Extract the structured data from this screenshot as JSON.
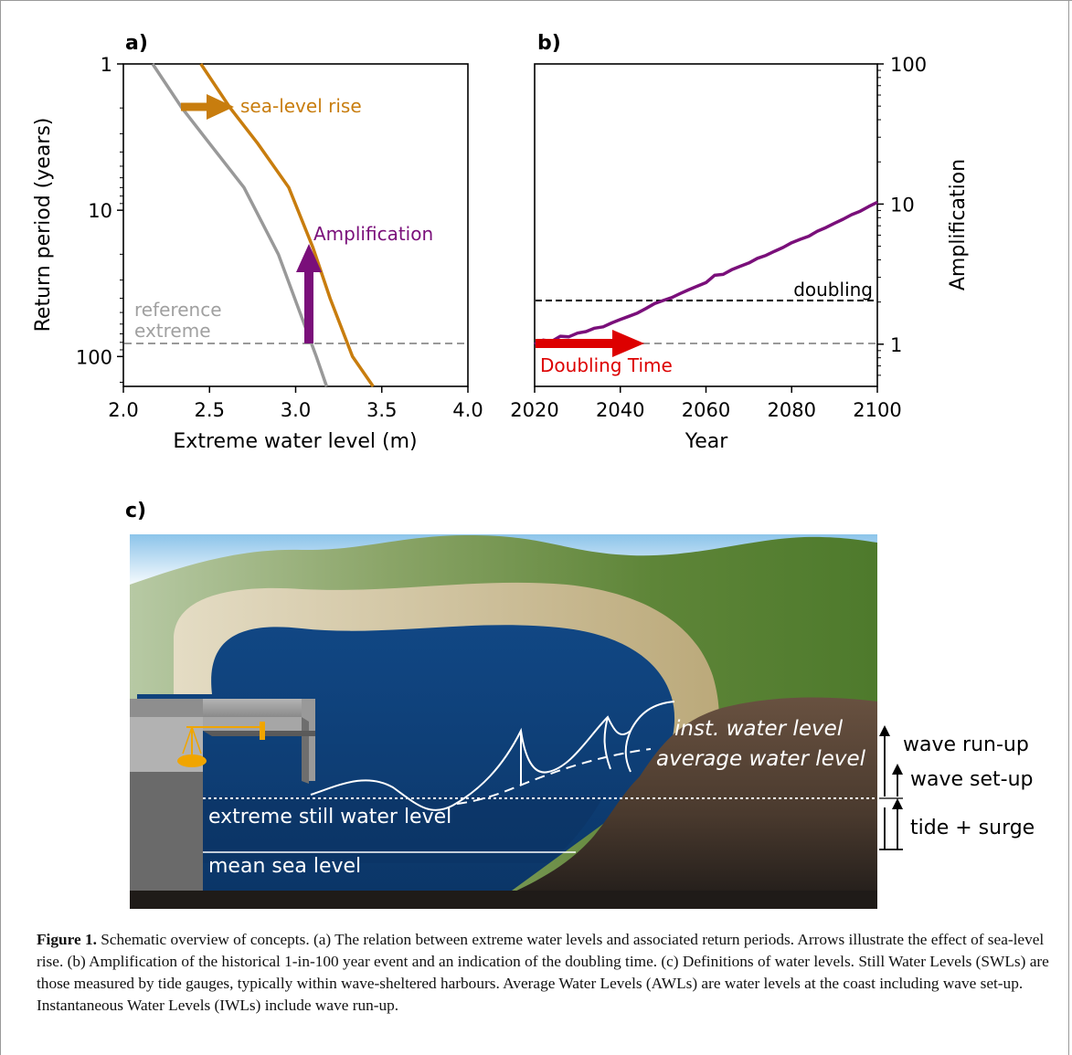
{
  "panels": {
    "a": {
      "label": "a)"
    },
    "b": {
      "label": "b)"
    },
    "c": {
      "label": "c)"
    }
  },
  "chart_data": [
    {
      "id": "panel-a",
      "type": "line",
      "xlabel": "Extreme water level (m)",
      "ylabel": "Return period (years)",
      "xlim": [
        2.0,
        4.0
      ],
      "ylim": [
        1,
        160
      ],
      "yscale": "log",
      "y_inverted": true,
      "xticks": [
        "2.0",
        "2.5",
        "3.0",
        "3.5",
        "4.0"
      ],
      "yticks": [
        "1",
        "10",
        "100"
      ],
      "series": [
        {
          "color": "#999999",
          "points": [
            [
              2.17,
              1
            ],
            [
              2.34,
              2
            ],
            [
              2.5,
              3.5
            ],
            [
              2.7,
              7
            ],
            [
              2.9,
              20
            ],
            [
              3.05,
              60
            ],
            [
              3.12,
              100
            ],
            [
              3.18,
              160
            ]
          ]
        },
        {
          "color": "#c87d0e",
          "points": [
            [
              2.45,
              1
            ],
            [
              2.62,
              2
            ],
            [
              2.78,
              3.5
            ],
            [
              2.96,
              7
            ],
            [
              3.1,
              18
            ],
            [
              3.2,
              40
            ],
            [
              3.33,
              100
            ],
            [
              3.45,
              160
            ]
          ]
        }
      ],
      "reference_line": {
        "y": 100,
        "color": "#999999",
        "style": "dashed"
      },
      "annotations": {
        "slr_label": "sea-level rise",
        "amp_label": "Amplification",
        "ref_label_1": "reference",
        "ref_label_2": "extreme"
      },
      "colors": {
        "slr": "#c87d0e",
        "amp": "#7a0f7a",
        "reference": "#999999"
      }
    },
    {
      "id": "panel-b",
      "type": "line",
      "xlabel": "Year",
      "ylabel": "Amplification",
      "xlim": [
        2020,
        2100
      ],
      "ylim": [
        0.5,
        100
      ],
      "yscale": "log",
      "xticks": [
        "2020",
        "2040",
        "2060",
        "2080",
        "2100"
      ],
      "yticks": [
        "1",
        "10",
        "100"
      ],
      "series": [
        {
          "color": "#7a0f7a",
          "x": [
            2020,
            2022,
            2024,
            2026,
            2028,
            2030,
            2032,
            2034,
            2036,
            2038,
            2040,
            2042,
            2044,
            2046,
            2048,
            2050,
            2052,
            2054,
            2056,
            2058,
            2060,
            2062,
            2064,
            2066,
            2068,
            2070,
            2072,
            2074,
            2076,
            2078,
            2080,
            2082,
            2084,
            2086,
            2088,
            2090,
            2092,
            2094,
            2096,
            2098,
            2100
          ],
          "y": [
            1.0,
            1.07,
            1.05,
            1.14,
            1.13,
            1.2,
            1.23,
            1.3,
            1.33,
            1.42,
            1.5,
            1.58,
            1.67,
            1.8,
            1.95,
            2.05,
            2.15,
            2.3,
            2.45,
            2.6,
            2.75,
            3.1,
            3.15,
            3.4,
            3.6,
            3.8,
            4.1,
            4.3,
            4.6,
            4.9,
            5.3,
            5.6,
            5.9,
            6.4,
            6.8,
            7.3,
            7.8,
            8.4,
            8.9,
            9.6,
            10.3
          ]
        }
      ],
      "doubling_line": {
        "y": 2,
        "color": "#000000",
        "style": "dashed"
      },
      "reference_line": {
        "y": 1,
        "color": "#999999",
        "style": "dashed"
      },
      "doubling_time_arrow": {
        "from": 2020,
        "to": 2046
      },
      "annotations": {
        "doubling_label": "doubling",
        "doubling_time_label": "Doubling Time"
      },
      "colors": {
        "line": "#7a0f7a",
        "arrow": "#dd0000"
      }
    }
  ],
  "schematic": {
    "labels": {
      "inst": "inst. water level",
      "avg": "average water level",
      "run_up": "wave run-up",
      "set_up": "wave set-up",
      "tide_surge": "tide + surge",
      "still": "extreme still water level",
      "msl": "mean sea level"
    },
    "colors": {
      "sea": "#0d3e7a",
      "hills": "#5e8538",
      "beach": "#c3b68e",
      "land": "#5a4636",
      "sky": "#a8d2ee"
    }
  },
  "caption": {
    "figure_label": "Figure 1.",
    "text": " Schematic overview of concepts. (a) The relation between extreme water levels and associated return periods. Arrows illustrate the effect of sea-level rise. (b) Amplification of the historical 1-in-100 year event and an indication of the doubling time. (c) Definitions of water levels. Still Water Levels (SWLs) are those measured by tide gauges, typically within wave-sheltered harbours. Average Water Levels (AWLs) are water levels at the coast including wave set-up. Instantaneous Water Levels (IWLs) include wave run-up."
  }
}
